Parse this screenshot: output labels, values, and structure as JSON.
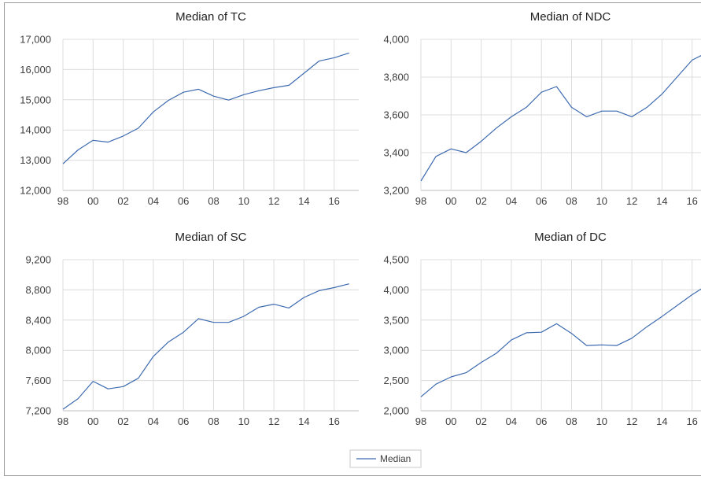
{
  "legend": {
    "label": "Median"
  },
  "colors": {
    "series": "#3e6bb0",
    "grid": "#dcdcdc"
  },
  "chart_data": [
    {
      "type": "line",
      "title": "Median of TC",
      "xlabel": "",
      "ylabel": "",
      "x_start": 1998,
      "x_ticks": [
        "98",
        "00",
        "02",
        "04",
        "06",
        "08",
        "10",
        "12",
        "14",
        "16"
      ],
      "y_ticks": [
        "12,000",
        "13,000",
        "14,000",
        "15,000",
        "16,000",
        "17,000"
      ],
      "ylim": [
        12000,
        17000
      ],
      "grid": true,
      "series": [
        {
          "name": "Median",
          "x": [
            1998,
            1999,
            2000,
            2001,
            2002,
            2003,
            2004,
            2005,
            2006,
            2007,
            2008,
            2009,
            2010,
            2011,
            2012,
            2013,
            2014,
            2015,
            2016,
            2017
          ],
          "values": [
            12880,
            13340,
            13660,
            13600,
            13800,
            14060,
            14600,
            14980,
            15250,
            15350,
            15120,
            14990,
            15170,
            15300,
            15400,
            15480,
            15880,
            16280,
            16390,
            16550
          ]
        }
      ]
    },
    {
      "type": "line",
      "title": "Median of NDC",
      "xlabel": "",
      "ylabel": "",
      "x_start": 1998,
      "x_ticks": [
        "98",
        "00",
        "02",
        "04",
        "06",
        "08",
        "10",
        "12",
        "14",
        "16"
      ],
      "y_ticks": [
        "3,200",
        "3,400",
        "3,600",
        "3,800",
        "4,000"
      ],
      "ylim": [
        3200,
        4000
      ],
      "grid": true,
      "series": [
        {
          "name": "Median",
          "x": [
            1998,
            1999,
            2000,
            2001,
            2002,
            2003,
            2004,
            2005,
            2006,
            2007,
            2008,
            2009,
            2010,
            2011,
            2012,
            2013,
            2014,
            2015,
            2016,
            2017
          ],
          "values": [
            3250,
            3380,
            3420,
            3400,
            3460,
            3530,
            3590,
            3640,
            3720,
            3750,
            3640,
            3590,
            3620,
            3620,
            3590,
            3640,
            3710,
            3800,
            3890,
            3930
          ]
        }
      ]
    },
    {
      "type": "line",
      "title": "Median of SC",
      "xlabel": "",
      "ylabel": "",
      "x_start": 1998,
      "x_ticks": [
        "98",
        "00",
        "02",
        "04",
        "06",
        "08",
        "10",
        "12",
        "14",
        "16"
      ],
      "y_ticks": [
        "7,200",
        "7,600",
        "8,000",
        "8,400",
        "8,800",
        "9,200"
      ],
      "ylim": [
        7200,
        9200
      ],
      "grid": true,
      "series": [
        {
          "name": "Median",
          "x": [
            1998,
            1999,
            2000,
            2001,
            2002,
            2003,
            2004,
            2005,
            2006,
            2007,
            2008,
            2009,
            2010,
            2011,
            2012,
            2013,
            2014,
            2015,
            2016,
            2017
          ],
          "values": [
            7220,
            7360,
            7590,
            7490,
            7520,
            7630,
            7920,
            8110,
            8240,
            8420,
            8370,
            8370,
            8450,
            8570,
            8610,
            8560,
            8700,
            8790,
            8830,
            8880
          ]
        }
      ]
    },
    {
      "type": "line",
      "title": "Median of DC",
      "xlabel": "",
      "ylabel": "",
      "x_start": 1998,
      "x_ticks": [
        "98",
        "00",
        "02",
        "04",
        "06",
        "08",
        "10",
        "12",
        "14",
        "16"
      ],
      "y_ticks": [
        "2,000",
        "2,500",
        "3,000",
        "3,500",
        "4,000",
        "4,500"
      ],
      "ylim": [
        2000,
        4500
      ],
      "grid": true,
      "series": [
        {
          "name": "Median",
          "x": [
            1998,
            1999,
            2000,
            2001,
            2002,
            2003,
            2004,
            2005,
            2006,
            2007,
            2008,
            2009,
            2010,
            2011,
            2012,
            2013,
            2014,
            2015,
            2016,
            2017
          ],
          "values": [
            2230,
            2440,
            2560,
            2630,
            2800,
            2950,
            3170,
            3290,
            3300,
            3440,
            3280,
            3080,
            3090,
            3080,
            3200,
            3390,
            3560,
            3740,
            3920,
            4080
          ]
        }
      ]
    }
  ]
}
